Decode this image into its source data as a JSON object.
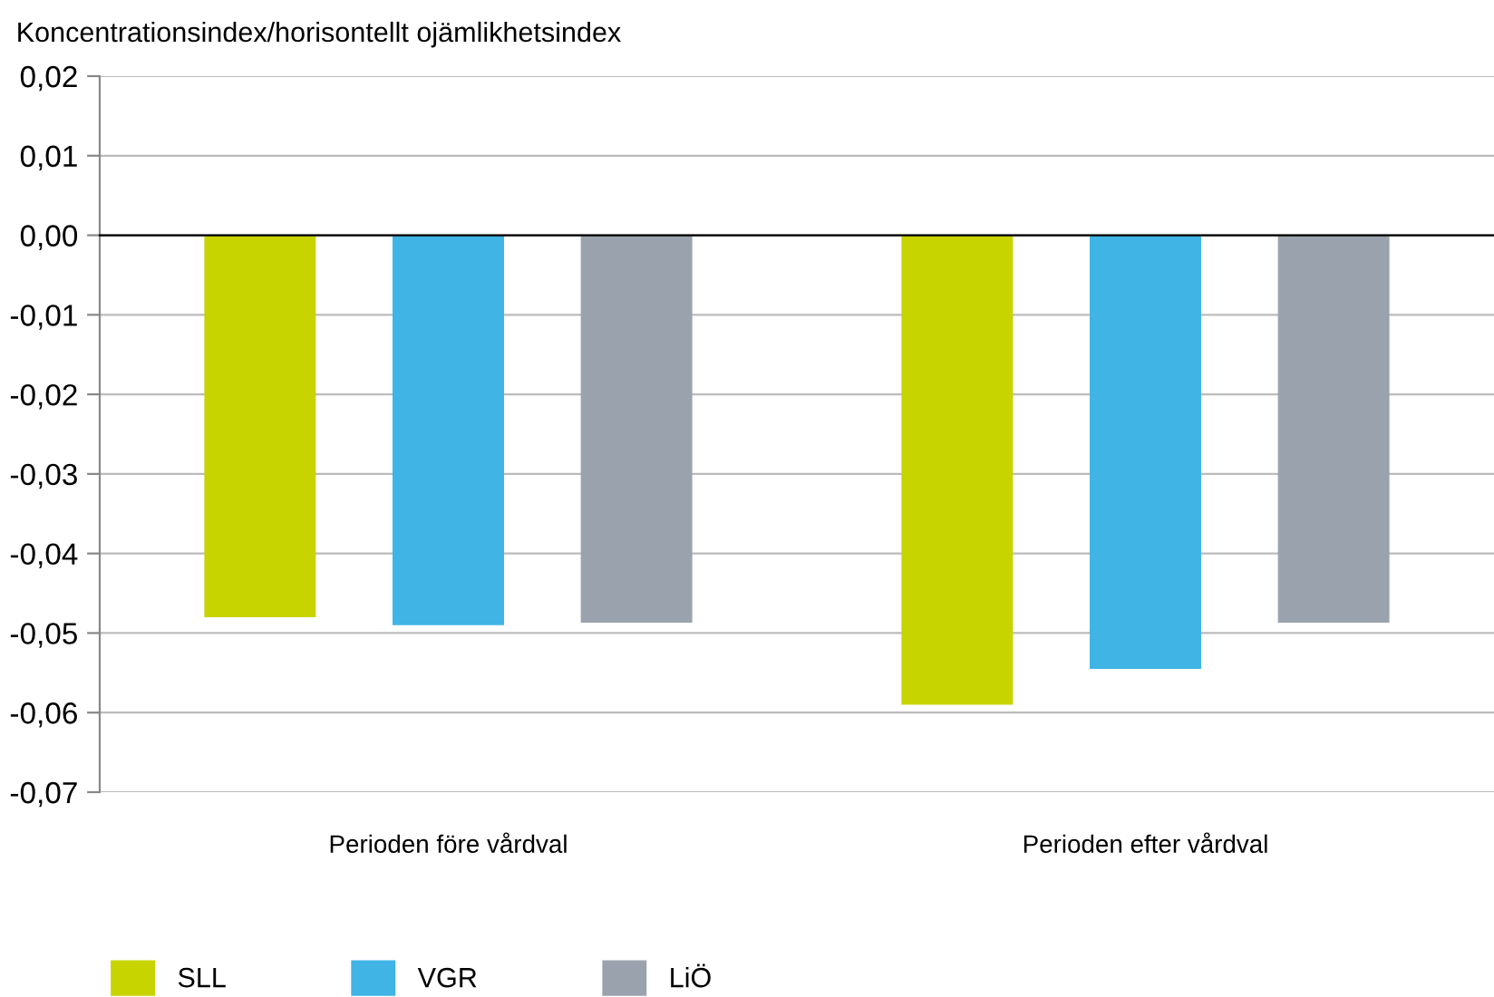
{
  "chart_data": {
    "type": "bar",
    "ylabel": "Koncentrationsindex/horisontellt ojämlikhetsindex",
    "categories": [
      "Perioden före vårdval",
      "Perioden efter vårdval"
    ],
    "series": [
      {
        "name": "SLL",
        "color": "#c8d400",
        "values": [
          -0.048,
          -0.059
        ]
      },
      {
        "name": "VGR",
        "color": "#3fb4e5",
        "values": [
          -0.049,
          -0.0545
        ]
      },
      {
        "name": "LiÖ",
        "color": "#9aa3ad",
        "values": [
          -0.0487,
          -0.0487
        ]
      }
    ],
    "ylim": [
      -0.07,
      0.02
    ],
    "yticks": [
      {
        "value": 0.02,
        "label": "0,02"
      },
      {
        "value": 0.01,
        "label": "0,01"
      },
      {
        "value": 0,
        "label": "0,00"
      },
      {
        "value": -0.01,
        "label": "-0,01"
      },
      {
        "value": -0.02,
        "label": "-0,02"
      },
      {
        "value": -0.03,
        "label": "-0,03"
      },
      {
        "value": -0.04,
        "label": "-0,04"
      },
      {
        "value": -0.05,
        "label": "-0,05"
      },
      {
        "value": -0.06,
        "label": "-0,06"
      },
      {
        "value": -0.07,
        "label": "-0,07"
      }
    ],
    "grid": "y",
    "legend": "bottom left"
  }
}
